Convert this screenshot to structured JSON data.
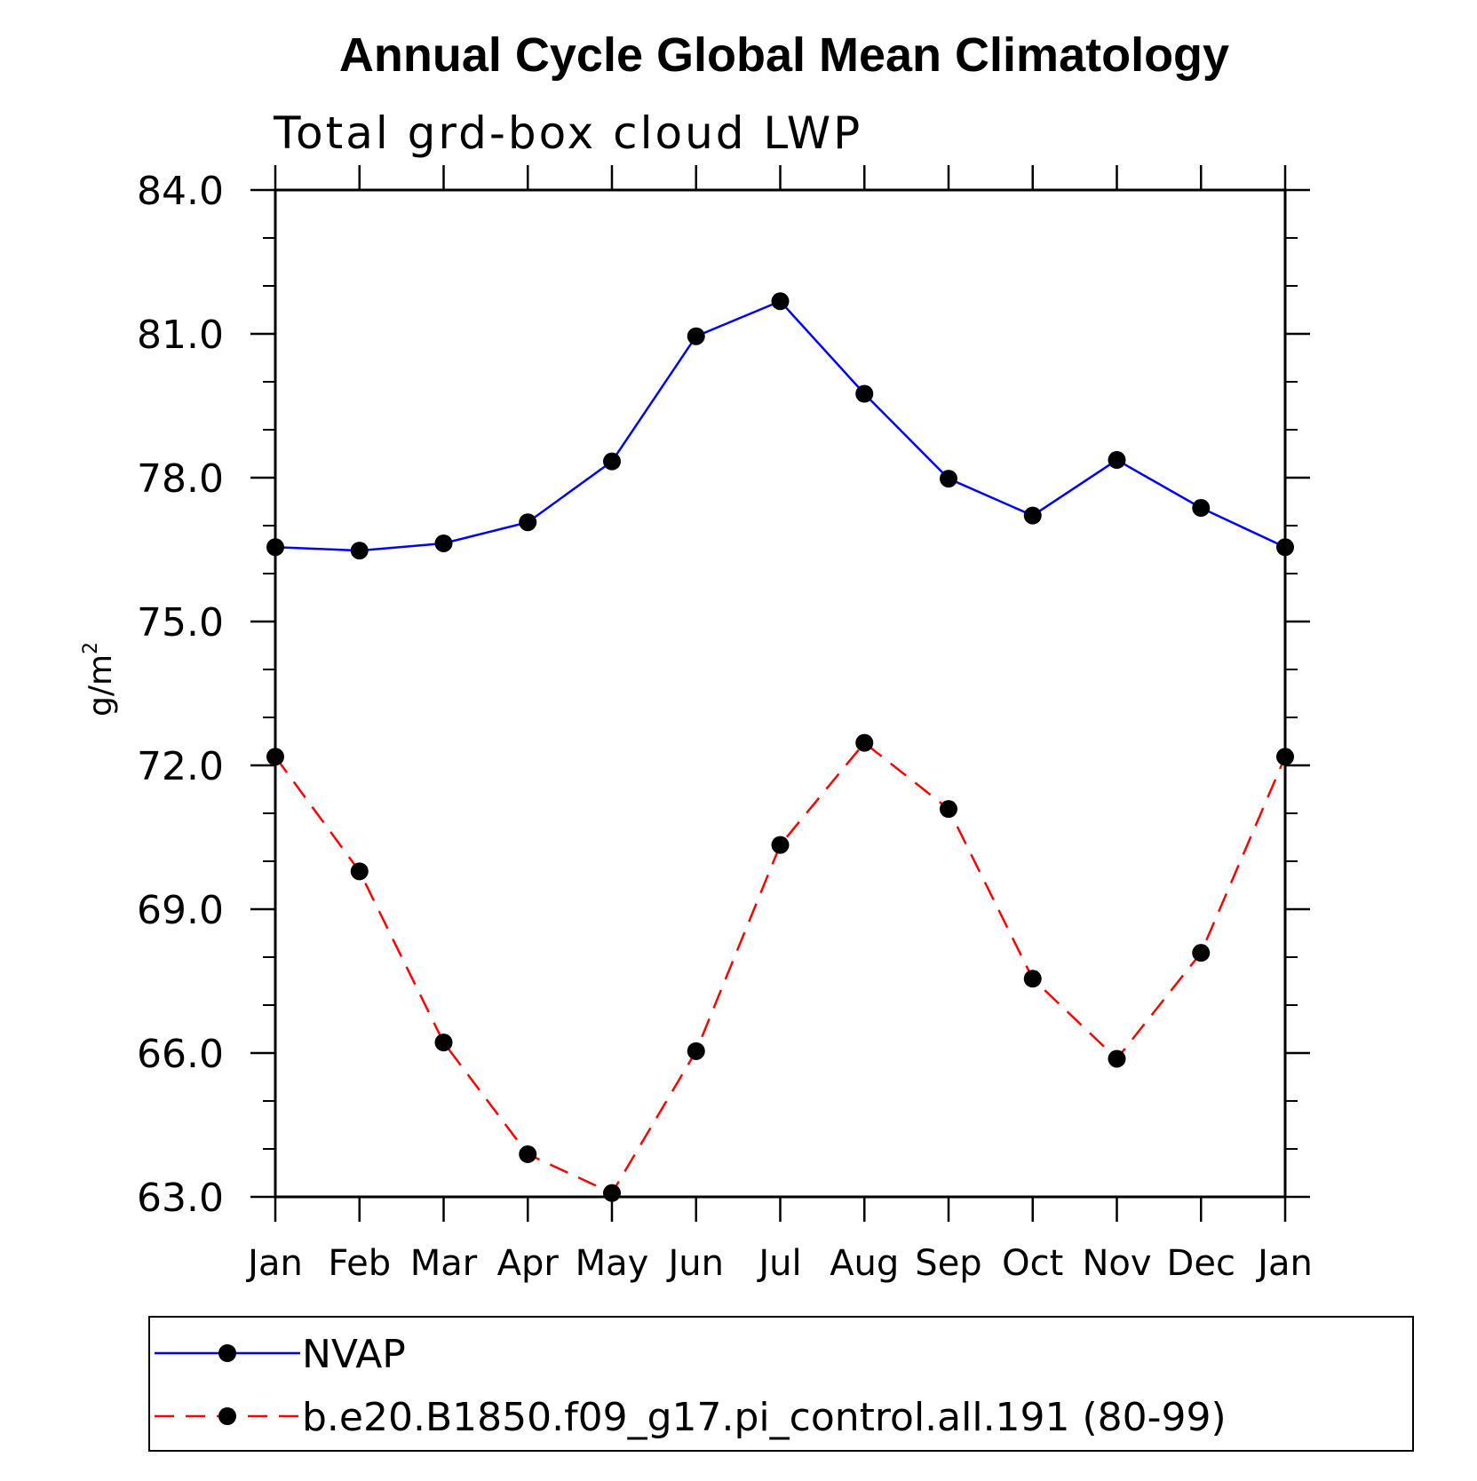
{
  "chart_data": {
    "type": "line",
    "title": "Annual Cycle Global Mean Climatology",
    "subtitle": "Total grd-box cloud LWP",
    "xlabel": "",
    "ylabel": "g/m",
    "ylabel_superscript": "2",
    "categories": [
      "Jan",
      "Feb",
      "Mar",
      "Apr",
      "May",
      "Jun",
      "Jul",
      "Aug",
      "Sep",
      "Oct",
      "Nov",
      "Dec",
      "Jan"
    ],
    "ylim": [
      63.0,
      84.0
    ],
    "y_ticks": [
      "63.0",
      "66.0",
      "69.0",
      "72.0",
      "75.0",
      "78.0",
      "81.0",
      "84.0"
    ],
    "y_tick_values": [
      63,
      66,
      69,
      72,
      75,
      78,
      81,
      84
    ],
    "y_minor_step": 1,
    "grid": false,
    "legend_position": "bottom",
    "series": [
      {
        "name": "NVAP",
        "color": "#0000ff",
        "dash": "solid",
        "marker_color": "#000000",
        "values": [
          76.55,
          76.48,
          76.63,
          77.07,
          78.34,
          80.95,
          81.68,
          79.75,
          77.98,
          77.21,
          78.37,
          77.37,
          76.55
        ]
      },
      {
        "name": "b.e20.B1850.f09_g17.pi_control.all.191 (80-99)",
        "color": "#ff0000",
        "dash": "dashed",
        "marker_color": "#000000",
        "values": [
          72.18,
          69.79,
          66.22,
          63.89,
          63.08,
          66.04,
          70.34,
          72.47,
          71.09,
          67.55,
          65.88,
          68.09,
          72.18
        ]
      }
    ]
  }
}
